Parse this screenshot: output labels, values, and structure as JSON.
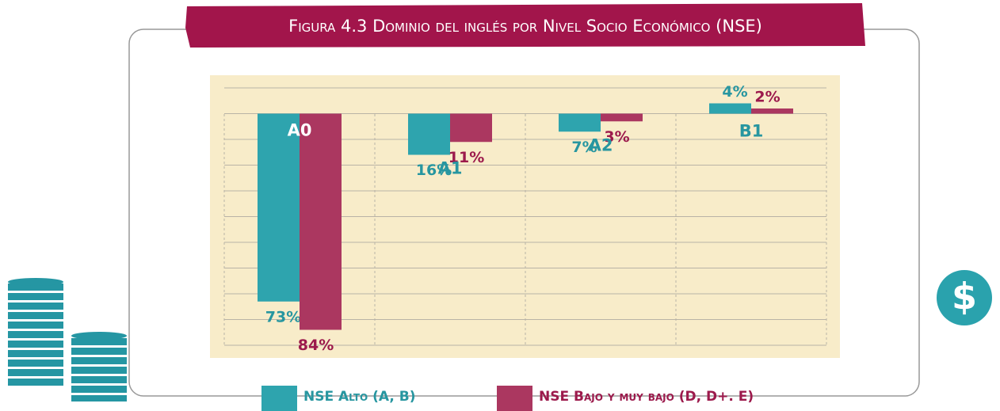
{
  "chart_data": {
    "type": "bar",
    "title": "Figura 4.3 Dominio del inglés por Nivel Socio Económico (NSE)",
    "categories": [
      "A0",
      "A1",
      "A2",
      "B1"
    ],
    "direction": [
      "down",
      "down",
      "down",
      "up"
    ],
    "series": [
      {
        "name": "NSE Alto (A, B)",
        "color": "#2ea4ae",
        "label_color": "#2796a0",
        "values": [
          73,
          16,
          7,
          4
        ],
        "value_labels": [
          "73%",
          "16%",
          "7%",
          "4%"
        ]
      },
      {
        "name": "NSE Bajo y muy bajo (D, D+. E)",
        "color": "#ab3760",
        "label_color": "#9c1a4c",
        "values": [
          84,
          11,
          3,
          2
        ],
        "value_labels": [
          "84%",
          "11%",
          "3%",
          "2%"
        ]
      }
    ],
    "ylim": [
      -10,
      90
    ],
    "yticks": [
      -10,
      0,
      10,
      20,
      30,
      40,
      50,
      60,
      70,
      80,
      90
    ],
    "grid": true
  }
}
